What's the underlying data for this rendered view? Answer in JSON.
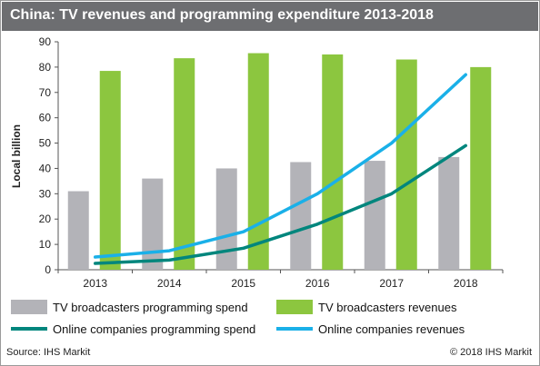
{
  "title": "China: TV revenues and programming expenditure 2013-2018",
  "source": "Source: IHS Markit",
  "copyright": "© 2018 IHS Markit",
  "colors": {
    "title_bar": "#6d6e71",
    "tv_spend": "#b3b3b8",
    "tv_revenue": "#8cc63f",
    "online_spend": "#00867d",
    "online_revenue": "#1ab0e8"
  },
  "chart_data": {
    "type": "bar",
    "categories": [
      "2013",
      "2014",
      "2015",
      "2016",
      "2017",
      "2018"
    ],
    "ylabel": "Local billion",
    "xlabel": "",
    "ylim": [
      0,
      90
    ],
    "yticks": [
      0,
      10,
      20,
      30,
      40,
      50,
      60,
      70,
      80,
      90
    ],
    "grid": false,
    "legend_position": "bottom",
    "bar_series": [
      {
        "name": "TV broadcasters programming spend",
        "values": [
          31,
          36,
          40,
          42.5,
          43,
          44.5
        ]
      },
      {
        "name": "TV broadcasters revenues",
        "values": [
          78.5,
          83.5,
          85.5,
          85,
          83,
          80
        ]
      }
    ],
    "line_series": [
      {
        "name": "Online companies programming spend",
        "values": [
          2.5,
          3.8,
          8.5,
          18,
          30,
          49
        ]
      },
      {
        "name": "Online companies revenues",
        "values": [
          5,
          7.5,
          15,
          30,
          50,
          77
        ]
      }
    ]
  }
}
